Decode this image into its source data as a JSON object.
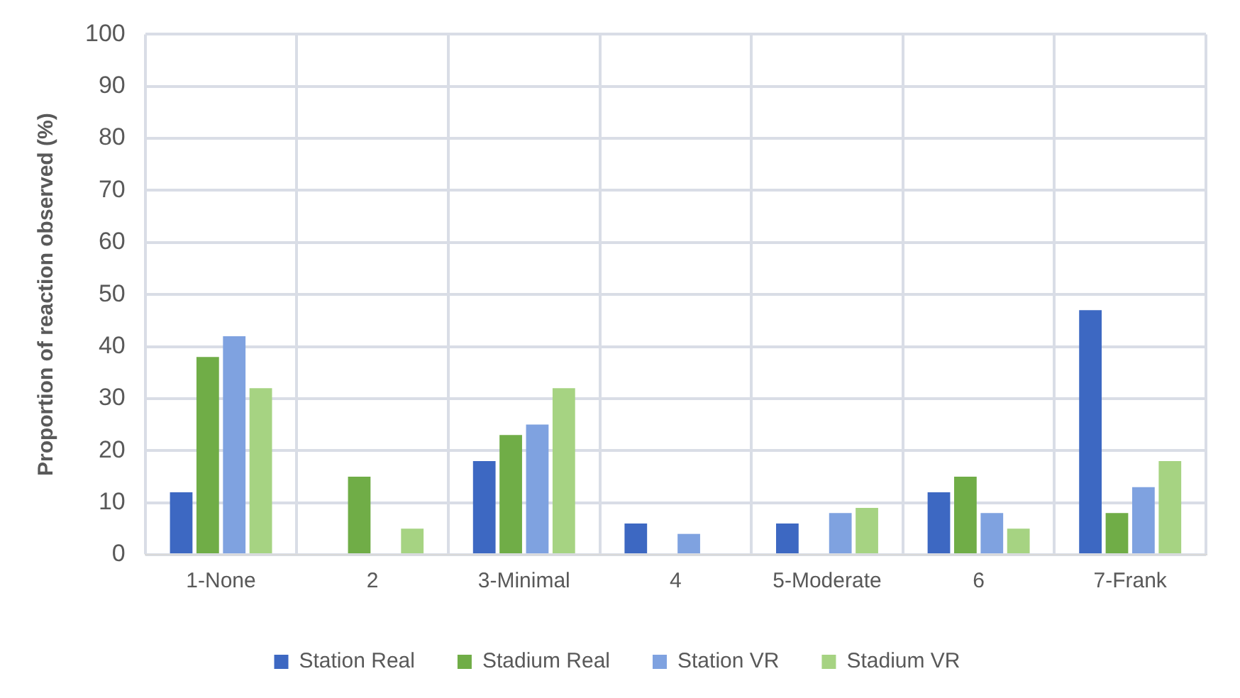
{
  "chart_data": {
    "type": "bar",
    "ylabel": "Proportion of reaction observed (%)",
    "categories": [
      "1-None",
      "2",
      "3-Minimal",
      "4",
      "5-Moderate",
      "6",
      "7-Frank"
    ],
    "series": [
      {
        "name": "Station Real",
        "color": "#3d68c2",
        "values": [
          12,
          0,
          18,
          6,
          6,
          12,
          47
        ]
      },
      {
        "name": "Stadium Real",
        "color": "#70ad47",
        "values": [
          38,
          15,
          23,
          0,
          0,
          15,
          8
        ]
      },
      {
        "name": "Station VR",
        "color": "#7fa2e0",
        "values": [
          42,
          0,
          25,
          4,
          8,
          8,
          13
        ]
      },
      {
        "name": "Stadium VR",
        "color": "#a6d382",
        "values": [
          32,
          5,
          32,
          0,
          9,
          5,
          18
        ]
      }
    ],
    "ylim": [
      0,
      100
    ],
    "yticks": [
      0,
      10,
      20,
      30,
      40,
      50,
      60,
      70,
      80,
      90,
      100
    ],
    "grid": true,
    "legend": "bottom"
  }
}
